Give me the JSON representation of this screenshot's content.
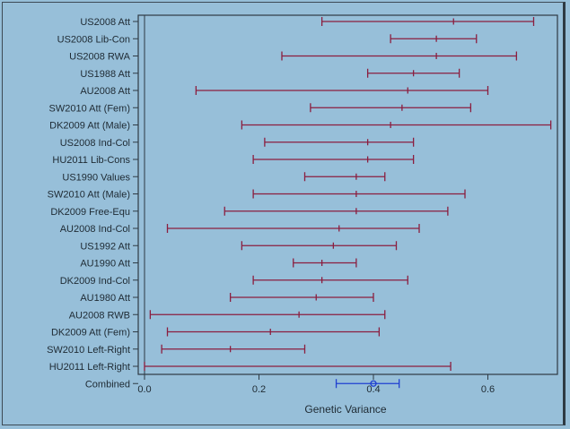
{
  "chart_data": {
    "type": "forest",
    "title": "",
    "xlabel": "Genetic Variance",
    "ylabel": "",
    "xlim": [
      0.0,
      0.72
    ],
    "xticks": [
      0.0,
      0.2,
      0.4,
      0.6
    ],
    "xtick_labels": [
      "0.0",
      "0.2",
      "0.4",
      "0.6"
    ],
    "grid": false,
    "colors": {
      "study": "#8b1e3f",
      "combined": "#1f3fd0",
      "background": "#97bfd9",
      "frame": "#2e3a44"
    },
    "rows": [
      {
        "label": "US2008 Att",
        "low": 0.31,
        "est": 0.54,
        "high": 0.68
      },
      {
        "label": "US2008 Lib-Con",
        "low": 0.43,
        "est": 0.51,
        "high": 0.58
      },
      {
        "label": "US2008 RWA",
        "low": 0.24,
        "est": 0.51,
        "high": 0.65
      },
      {
        "label": "US1988 Att",
        "low": 0.39,
        "est": 0.47,
        "high": 0.55
      },
      {
        "label": "AU2008 Att",
        "low": 0.09,
        "est": 0.46,
        "high": 0.6
      },
      {
        "label": "SW2010 Att (Fem)",
        "low": 0.29,
        "est": 0.45,
        "high": 0.57
      },
      {
        "label": "DK2009 Att (Male)",
        "low": 0.17,
        "est": 0.43,
        "high": 0.71
      },
      {
        "label": "US2008 Ind-Col",
        "low": 0.21,
        "est": 0.39,
        "high": 0.47
      },
      {
        "label": "HU2011 Lib-Cons",
        "low": 0.19,
        "est": 0.39,
        "high": 0.47
      },
      {
        "label": "US1990 Values",
        "low": 0.28,
        "est": 0.37,
        "high": 0.42
      },
      {
        "label": "SW2010 Att (Male)",
        "low": 0.19,
        "est": 0.37,
        "high": 0.56
      },
      {
        "label": "DK2009 Free-Equ",
        "low": 0.14,
        "est": 0.37,
        "high": 0.53
      },
      {
        "label": "AU2008 Ind-Col",
        "low": 0.04,
        "est": 0.34,
        "high": 0.48
      },
      {
        "label": "US1992 Att",
        "low": 0.17,
        "est": 0.33,
        "high": 0.44
      },
      {
        "label": "AU1990 Att",
        "low": 0.26,
        "est": 0.31,
        "high": 0.37
      },
      {
        "label": "DK2009 Ind-Col",
        "low": 0.19,
        "est": 0.31,
        "high": 0.46
      },
      {
        "label": "AU1980 Att",
        "low": 0.15,
        "est": 0.3,
        "high": 0.4
      },
      {
        "label": "AU2008 RWB",
        "low": 0.01,
        "est": 0.27,
        "high": 0.42
      },
      {
        "label": "DK2009 Att (Fem)",
        "low": 0.04,
        "est": 0.22,
        "high": 0.41
      },
      {
        "label": "SW2010 Left-Right",
        "low": 0.03,
        "est": 0.15,
        "high": 0.28
      },
      {
        "label": "HU2011 Left-Right",
        "low": 0.0,
        "est": null,
        "high": 0.535
      },
      {
        "label": "Combined",
        "low": 0.335,
        "est": 0.4,
        "high": 0.445,
        "combined": true
      }
    ]
  }
}
